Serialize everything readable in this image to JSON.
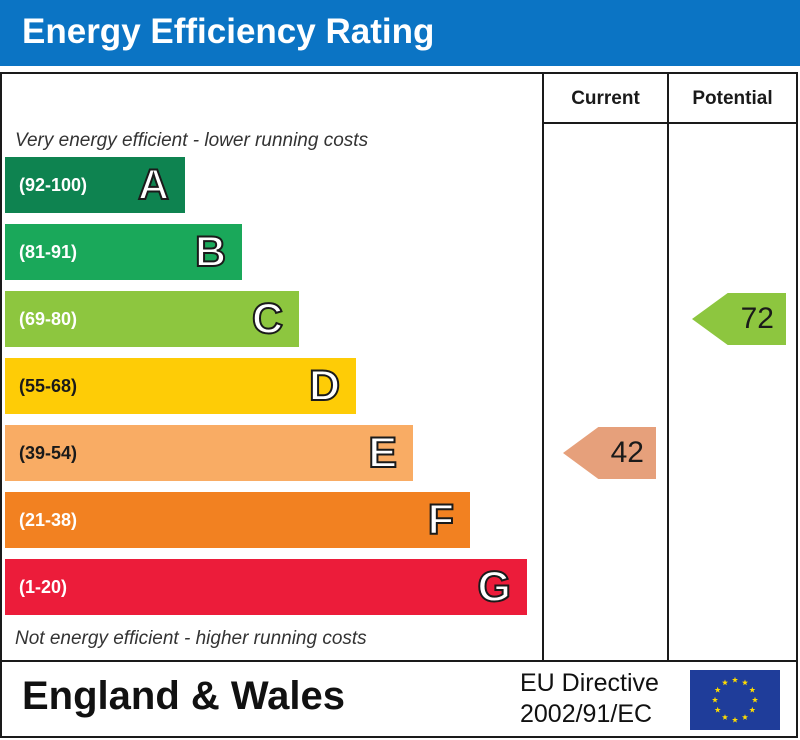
{
  "title": "Energy Efficiency Rating",
  "header_color": "#0b74c4",
  "columns": {
    "current": "Current",
    "potential": "Potential"
  },
  "top_note": "Very energy efficient - lower running costs",
  "bottom_note": "Not energy efficient - higher running costs",
  "chart_data": {
    "type": "bar",
    "categories": [
      "A",
      "B",
      "C",
      "D",
      "E",
      "F",
      "G"
    ],
    "bands": [
      {
        "letter": "A",
        "range": "(92-100)",
        "color": "#0e8350"
      },
      {
        "letter": "B",
        "range": "(81-91)",
        "color": "#1aa85a"
      },
      {
        "letter": "C",
        "range": "(69-80)",
        "color": "#8dc63f"
      },
      {
        "letter": "D",
        "range": "(55-68)",
        "color": "#fecc06"
      },
      {
        "letter": "E",
        "range": "(39-54)",
        "color": "#f9ac64"
      },
      {
        "letter": "F",
        "range": "(21-38)",
        "color": "#f28121"
      },
      {
        "letter": "G",
        "range": "(1-20)",
        "color": "#ec1c3a"
      }
    ],
    "current": {
      "value": 42,
      "band": "E",
      "color": "#e6a07b"
    },
    "potential": {
      "value": 72,
      "band": "C",
      "color": "#8dc63f"
    }
  },
  "footer": {
    "region": "England & Wales",
    "directive_line1": "EU Directive",
    "directive_line2": "2002/91/EC",
    "flag_color": "#1f3d9a",
    "star_color": "#ffdd00"
  }
}
